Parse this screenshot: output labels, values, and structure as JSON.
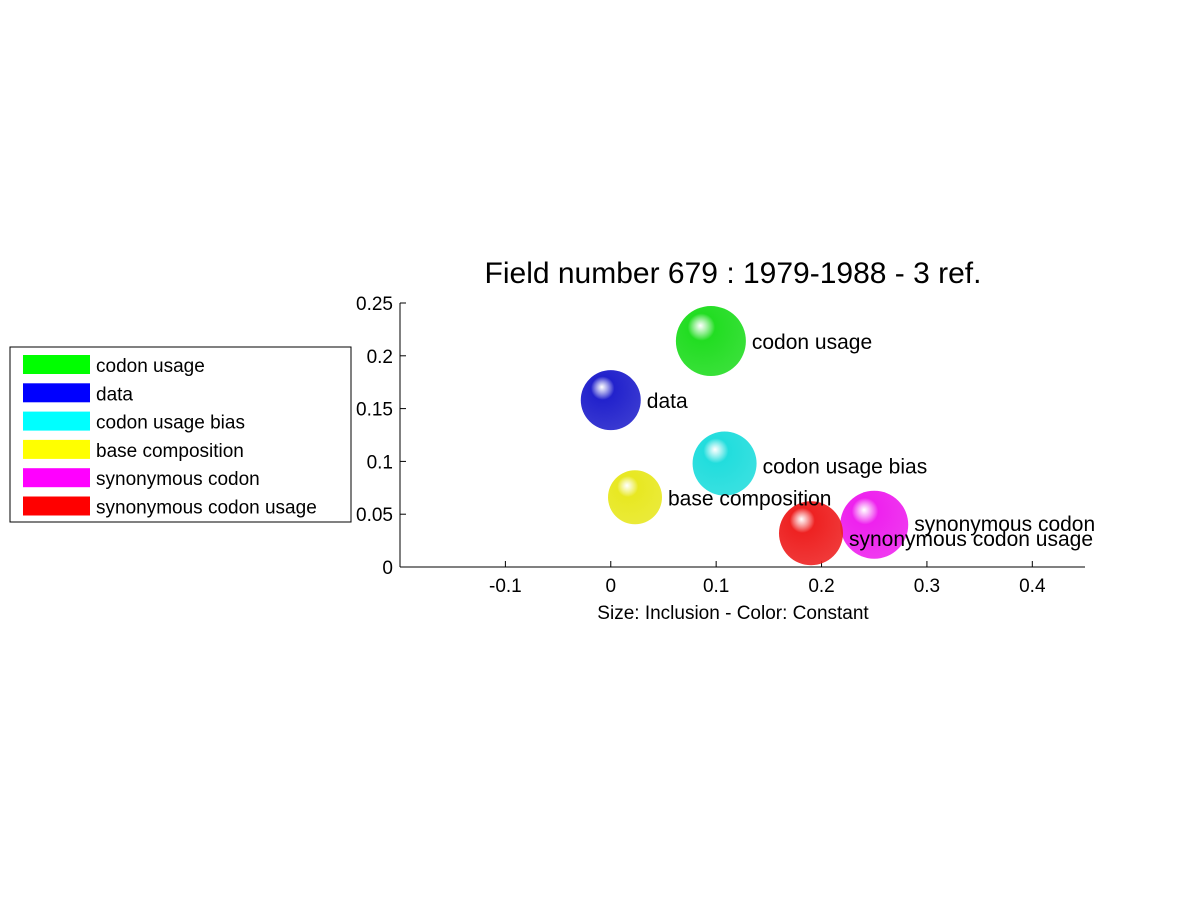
{
  "chart_data": {
    "type": "scatter",
    "title": "Field number 679 : 1979-1988  - 3 ref.",
    "xlabel": "Size: Inclusion - Color: Constant",
    "ylabel": "",
    "xlim": [
      -0.2,
      0.45
    ],
    "ylim": [
      0,
      0.25
    ],
    "x_ticks": [
      "-0.1",
      "0",
      "0.1",
      "0.2",
      "0.3",
      "0.4"
    ],
    "x_tick_values": [
      -0.1,
      0,
      0.1,
      0.2,
      0.3,
      0.4
    ],
    "y_ticks": [
      "0",
      "0.05",
      "0.1",
      "0.15",
      "0.2",
      "0.25"
    ],
    "y_tick_values": [
      0,
      0.05,
      0.1,
      0.15,
      0.2,
      0.25
    ],
    "grid": false,
    "legend_position": "left",
    "series": [
      {
        "name": "codon usage",
        "x": 0.095,
        "y": 0.214,
        "color": "#22dd22"
      },
      {
        "name": "data",
        "x": 0.0,
        "y": 0.158,
        "color": "#2222cc"
      },
      {
        "name": "codon usage bias",
        "x": 0.108,
        "y": 0.098,
        "color": "#22dddd"
      },
      {
        "name": "base composition",
        "x": 0.023,
        "y": 0.066,
        "color": "#e8e822"
      },
      {
        "name": "synonymous codon",
        "x": 0.25,
        "y": 0.04,
        "color": "#ee22ee"
      },
      {
        "name": "synonymous codon usage",
        "x": 0.19,
        "y": 0.032,
        "color": "#ee2222"
      }
    ],
    "legend_swatch_colors": [
      "#00ff00",
      "#0000ff",
      "#00ffff",
      "#ffff00",
      "#ff00ff",
      "#ff0000"
    ]
  }
}
